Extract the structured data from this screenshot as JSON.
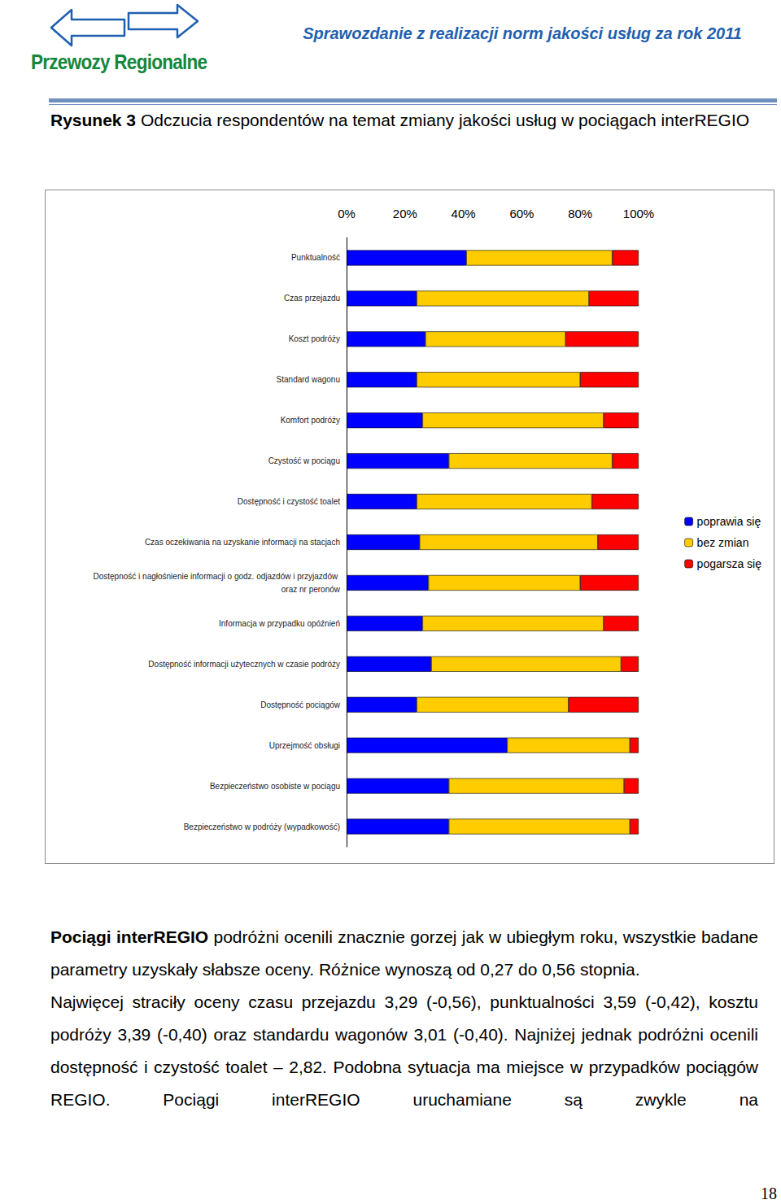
{
  "header": {
    "logo": "Przewozy Regionalne",
    "report_title": "Sprawozdanie z realizacji norm jakości usług za rok 2011"
  },
  "figure": {
    "label": "Rysunek 3",
    "caption": "Odczucia respondentów na temat zmiany jakości usług w pociągach interREGIO"
  },
  "chart_data": {
    "type": "bar",
    "orientation": "horizontal",
    "stacked": true,
    "grid": false,
    "legend": "right",
    "categories": [
      "Punktualność",
      "Czas przejazdu",
      "Koszt podróży",
      "Standard wagonu",
      "Komfort podróży",
      "Czystość w pociągu",
      "Dostępność i czystość toalet",
      "Czas oczekiwania na uzyskanie informacji na stacjach",
      "Dostępność i nagłośnienie informacji o godz. odjazdów i przyjazdów oraz nr peronów",
      "Informacja w przypadku opóźnień",
      "Dostępność informacji użytecznych w czasie podróży",
      "Dostępność pociągów",
      "Uprzejmość obsługi",
      "Bezpieczeństwo osobiste w pociągu",
      "Bezpieczeństwo w podróży (wypadkowość)"
    ],
    "series": [
      {
        "name": "poprawia się",
        "color": "#0000ff",
        "values": [
          41,
          24,
          27,
          24,
          26,
          35,
          24,
          25,
          28,
          26,
          29,
          24,
          55,
          35,
          35
        ]
      },
      {
        "name": "bez zmian",
        "color": "#ffcc00",
        "values": [
          50,
          59,
          48,
          56,
          62,
          56,
          60,
          61,
          52,
          62,
          65,
          52,
          42,
          60,
          62
        ]
      },
      {
        "name": "pogarsza się",
        "color": "#ff0000",
        "values": [
          9,
          17,
          25,
          20,
          12,
          9,
          16,
          14,
          20,
          12,
          6,
          24,
          3,
          5,
          3
        ]
      }
    ],
    "xlim": [
      0,
      100
    ],
    "xticks": [
      {
        "value": 0,
        "label": "0%"
      },
      {
        "value": 20,
        "label": "20%"
      },
      {
        "value": 40,
        "label": "40%"
      },
      {
        "value": 60,
        "label": "60%"
      },
      {
        "value": 80,
        "label": "80%"
      },
      {
        "value": 100,
        "label": "100%"
      }
    ]
  },
  "paragraphs": [
    [
      {
        "text": "Pociągi interREGIO",
        "bold": true
      },
      {
        "text": " podróżni ocenili znacznie gorzej jak w ubiegłym roku, wszystkie badane parametry uzyskały słabsze oceny. Różnice wynoszą od 0,27 do 0,56 stopnia."
      }
    ],
    [
      {
        "text": "Najwięcej straciły oceny czasu przejazdu 3,29 (-0,56), punktualności 3,59 (-0,42), kosztu podróży 3,39 (-0,40) oraz standardu wagonów 3,01 (-0,40). Najniżej jednak podróżni ocenili dostępność i czystość toalet – 2,82. Podobna sytuacja ma miejsce w przypadków pociągów REGIO. Pociągi interREGIO uruchamiane są zwykle na"
      }
    ]
  ],
  "page_number": "18"
}
